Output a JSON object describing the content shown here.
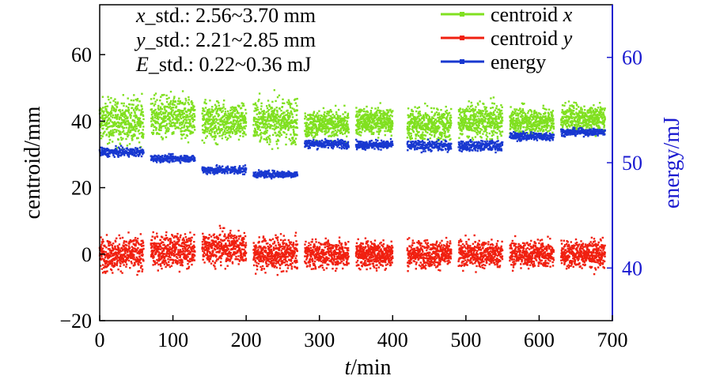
{
  "chart_data": {
    "type": "scatter",
    "xlabel_italic": "t",
    "xlabel_rest": "/min",
    "ylabel": "centroid/mm",
    "y2label": "energy/mJ",
    "xlim": [
      0,
      700
    ],
    "ylim": [
      -20,
      75
    ],
    "y2lim": [
      35,
      65
    ],
    "xticks": [
      0,
      100,
      200,
      300,
      400,
      500,
      600,
      700
    ],
    "yticks": [
      -20,
      0,
      20,
      40,
      60
    ],
    "y2ticks": [
      40,
      50,
      60
    ],
    "legend_position": "top-right",
    "annotations": [
      {
        "italic": "x",
        "rest": "_std.: 2.56~3.70 mm"
      },
      {
        "italic": "y",
        "rest": "_std.: 2.21~2.85 mm"
      },
      {
        "italic": "E",
        "rest": "_std.: 0.22~0.36 mJ"
      }
    ],
    "series": [
      {
        "name": "centroid ",
        "name_italic": "x",
        "axis": "left",
        "color": "#80e020",
        "segments": [
          {
            "start": 0,
            "end": 60,
            "mean": 40,
            "spread": 8
          },
          {
            "start": 70,
            "end": 130,
            "mean": 41,
            "spread": 8
          },
          {
            "start": 140,
            "end": 200,
            "mean": 40,
            "spread": 7
          },
          {
            "start": 210,
            "end": 270,
            "mean": 40,
            "spread": 8
          },
          {
            "start": 280,
            "end": 340,
            "mean": 39,
            "spread": 5
          },
          {
            "start": 350,
            "end": 400,
            "mean": 40,
            "spread": 5
          },
          {
            "start": 420,
            "end": 480,
            "mean": 39,
            "spread": 6
          },
          {
            "start": 490,
            "end": 550,
            "mean": 40,
            "spread": 6
          },
          {
            "start": 560,
            "end": 620,
            "mean": 40,
            "spread": 5
          },
          {
            "start": 630,
            "end": 690,
            "mean": 41,
            "spread": 5
          }
        ]
      },
      {
        "name": "centroid ",
        "name_italic": "y",
        "axis": "left",
        "color": "#f02010",
        "segments": [
          {
            "start": 0,
            "end": 60,
            "mean": 0,
            "spread": 6
          },
          {
            "start": 70,
            "end": 130,
            "mean": 1,
            "spread": 6
          },
          {
            "start": 140,
            "end": 200,
            "mean": 2,
            "spread": 6
          },
          {
            "start": 210,
            "end": 270,
            "mean": 0,
            "spread": 6
          },
          {
            "start": 280,
            "end": 340,
            "mean": 0,
            "spread": 5
          },
          {
            "start": 350,
            "end": 400,
            "mean": 0,
            "spread": 5
          },
          {
            "start": 420,
            "end": 480,
            "mean": 0,
            "spread": 5
          },
          {
            "start": 490,
            "end": 550,
            "mean": 0,
            "spread": 5
          },
          {
            "start": 560,
            "end": 620,
            "mean": 0,
            "spread": 5
          },
          {
            "start": 630,
            "end": 690,
            "mean": 0,
            "spread": 5
          }
        ]
      },
      {
        "name": "energy",
        "axis": "right",
        "color": "#1838d0",
        "segments": [
          {
            "start": 0,
            "end": 60,
            "mean": 51.0,
            "spread": 0.5
          },
          {
            "start": 70,
            "end": 130,
            "mean": 50.4,
            "spread": 0.4
          },
          {
            "start": 140,
            "end": 200,
            "mean": 49.3,
            "spread": 0.5
          },
          {
            "start": 210,
            "end": 270,
            "mean": 48.9,
            "spread": 0.4
          },
          {
            "start": 280,
            "end": 340,
            "mean": 51.8,
            "spread": 0.5
          },
          {
            "start": 350,
            "end": 400,
            "mean": 51.7,
            "spread": 0.5
          },
          {
            "start": 420,
            "end": 480,
            "mean": 51.6,
            "spread": 0.6
          },
          {
            "start": 490,
            "end": 550,
            "mean": 51.6,
            "spread": 0.6
          },
          {
            "start": 560,
            "end": 620,
            "mean": 52.5,
            "spread": 0.5
          },
          {
            "start": 630,
            "end": 690,
            "mean": 52.9,
            "spread": 0.4
          }
        ]
      }
    ]
  }
}
